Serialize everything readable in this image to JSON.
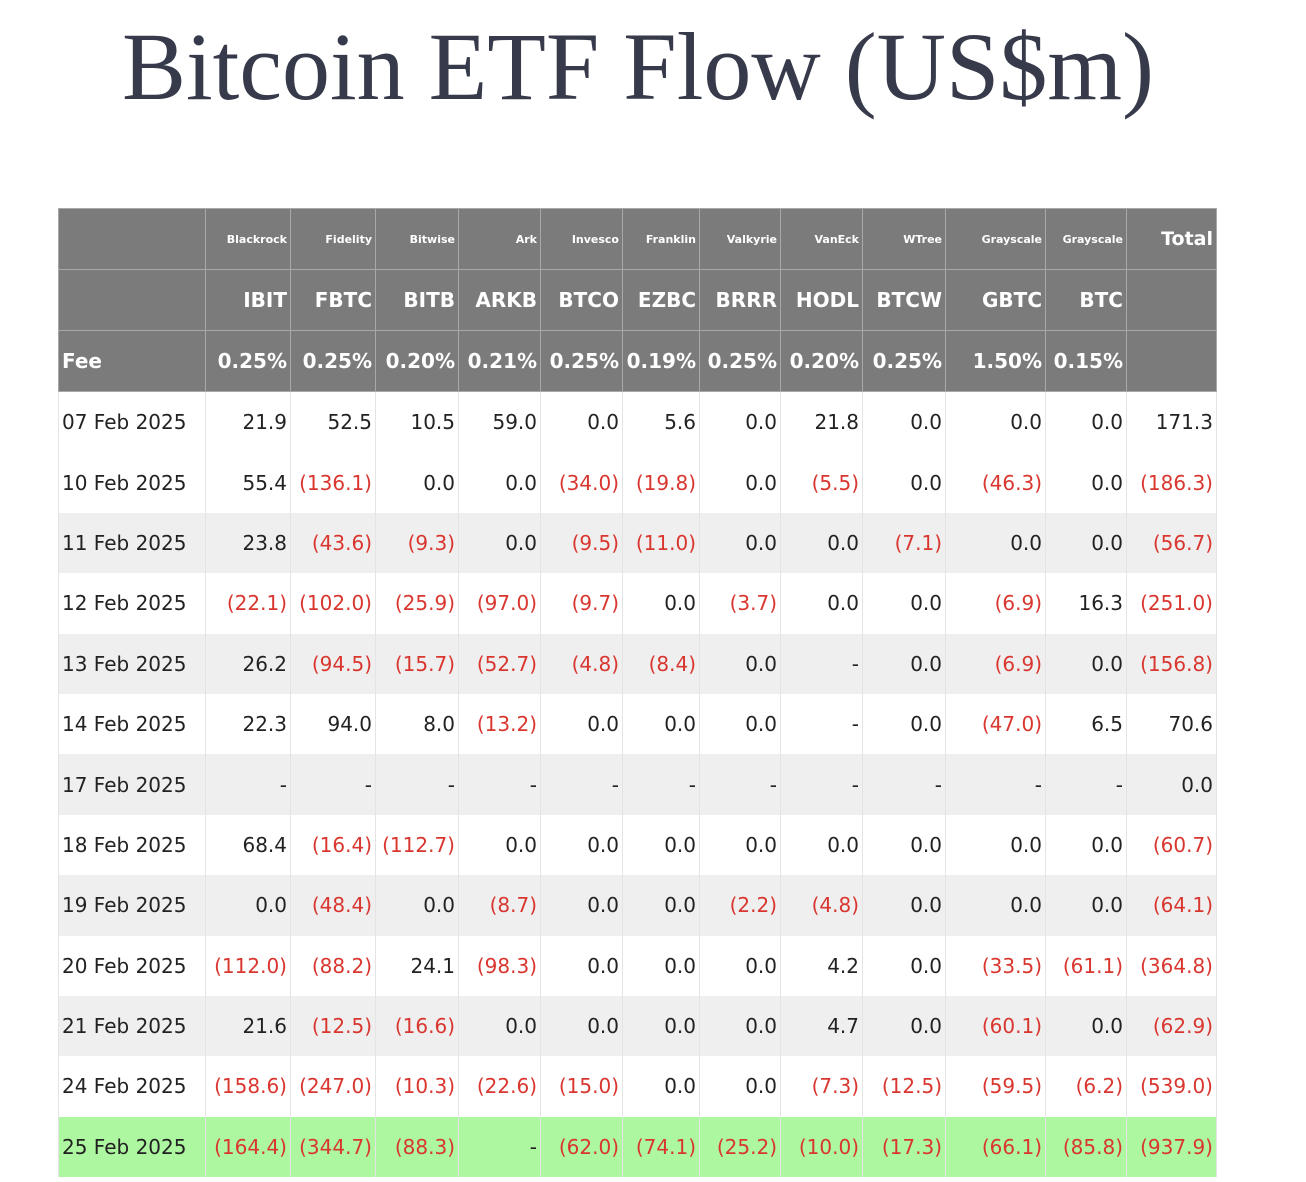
{
  "header": {
    "title": "Bitcoin ETF Flow (US$m)"
  },
  "table": {
    "providers": [
      "Blackrock",
      "Fidelity",
      "Bitwise",
      "Ark",
      "Invesco",
      "Franklin",
      "Valkyrie",
      "VanEck",
      "WTree",
      "Grayscale",
      "Grayscale"
    ],
    "total_label": "Total",
    "tickers": [
      "IBIT",
      "FBTC",
      "BITB",
      "ARKB",
      "BTCO",
      "EZBC",
      "BRRR",
      "HODL",
      "BTCW",
      "GBTC",
      "BTC"
    ],
    "fee_label": "Fee",
    "fees": [
      "0.25%",
      "0.25%",
      "0.20%",
      "0.21%",
      "0.25%",
      "0.19%",
      "0.25%",
      "0.20%",
      "0.25%",
      "1.50%",
      "0.15%"
    ],
    "rows": [
      [
        "07 Feb 2025",
        "21.9",
        "52.5",
        "10.5",
        "59.0",
        "0.0",
        "5.6",
        "0.0",
        "21.8",
        "0.0",
        "0.0",
        "0.0",
        "171.3"
      ],
      [
        "10 Feb 2025",
        "55.4",
        "(136.1)",
        "0.0",
        "0.0",
        "(34.0)",
        "(19.8)",
        "0.0",
        "(5.5)",
        "0.0",
        "(46.3)",
        "0.0",
        "(186.3)"
      ],
      [
        "11 Feb 2025",
        "23.8",
        "(43.6)",
        "(9.3)",
        "0.0",
        "(9.5)",
        "(11.0)",
        "0.0",
        "0.0",
        "(7.1)",
        "0.0",
        "0.0",
        "(56.7)"
      ],
      [
        "12 Feb 2025",
        "(22.1)",
        "(102.0)",
        "(25.9)",
        "(97.0)",
        "(9.7)",
        "0.0",
        "(3.7)",
        "0.0",
        "0.0",
        "(6.9)",
        "16.3",
        "(251.0)"
      ],
      [
        "13 Feb 2025",
        "26.2",
        "(94.5)",
        "(15.7)",
        "(52.7)",
        "(4.8)",
        "(8.4)",
        "0.0",
        "-",
        "0.0",
        "(6.9)",
        "0.0",
        "(156.8)"
      ],
      [
        "14 Feb 2025",
        "22.3",
        "94.0",
        "8.0",
        "(13.2)",
        "0.0",
        "0.0",
        "0.0",
        "-",
        "0.0",
        "(47.0)",
        "6.5",
        "70.6"
      ],
      [
        "17 Feb 2025",
        "-",
        "-",
        "-",
        "-",
        "-",
        "-",
        "-",
        "-",
        "-",
        "-",
        "-",
        "0.0"
      ],
      [
        "18 Feb 2025",
        "68.4",
        "(16.4)",
        "(112.7)",
        "0.0",
        "0.0",
        "0.0",
        "0.0",
        "0.0",
        "0.0",
        "0.0",
        "0.0",
        "(60.7)"
      ],
      [
        "19 Feb 2025",
        "0.0",
        "(48.4)",
        "0.0",
        "(8.7)",
        "0.0",
        "0.0",
        "(2.2)",
        "(4.8)",
        "0.0",
        "0.0",
        "0.0",
        "(64.1)"
      ],
      [
        "20 Feb 2025",
        "(112.0)",
        "(88.2)",
        "24.1",
        "(98.3)",
        "0.0",
        "0.0",
        "0.0",
        "4.2",
        "0.0",
        "(33.5)",
        "(61.1)",
        "(364.8)"
      ],
      [
        "21 Feb 2025",
        "21.6",
        "(12.5)",
        "(16.6)",
        "0.0",
        "0.0",
        "0.0",
        "0.0",
        "4.7",
        "0.0",
        "(60.1)",
        "0.0",
        "(62.9)"
      ],
      [
        "24 Feb 2025",
        "(158.6)",
        "(247.0)",
        "(10.3)",
        "(22.6)",
        "(15.0)",
        "0.0",
        "0.0",
        "(7.3)",
        "(12.5)",
        "(59.5)",
        "(6.2)",
        "(539.0)"
      ],
      [
        "25 Feb 2025",
        "(164.4)",
        "(344.7)",
        "(88.3)",
        "-",
        "(62.0)",
        "(74.1)",
        "(25.2)",
        "(10.0)",
        "(17.3)",
        "(66.1)",
        "(85.8)",
        "(937.9)"
      ]
    ]
  }
}
